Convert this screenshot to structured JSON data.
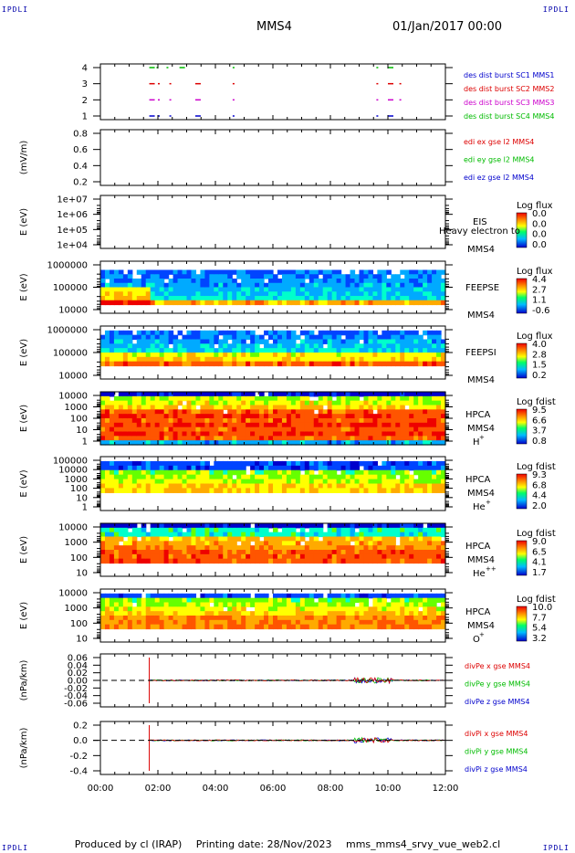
{
  "header": {
    "corner_label": "IPDLI",
    "spacecraft": "MMS4",
    "date": "01/Jan/2017 00:00"
  },
  "footer": {
    "produced_by": "Produced by cl (IRAP)",
    "printing_date": "Printing date: 28/Nov/2023",
    "file": "mms_mms4_srvy_vue_web2.cl"
  },
  "colors": {
    "blue": "#0000cc",
    "red": "#dd0000",
    "magenta": "#cc00cc",
    "green": "#00bb00"
  },
  "chart_data": {
    "type": "multi-panel",
    "x_range": [
      "00:00",
      "12:00"
    ],
    "x_ticks": [
      "00:00",
      "02:00",
      "04:00",
      "06:00",
      "08:00",
      "10:00",
      "12:00"
    ],
    "panels": [
      {
        "id": "burst",
        "type": "scatter",
        "ylabel": "",
        "yticks": [
          "4",
          "3",
          "2",
          "1"
        ],
        "legend": [
          {
            "text": "des dist burst SC1 MMS1",
            "color": "#0000cc"
          },
          {
            "text": "des dist burst SC2 MMS2",
            "color": "#dd0000"
          },
          {
            "text": "des dist burst SC3 MMS3",
            "color": "#cc00cc"
          },
          {
            "text": "des dist burst SC4 MMS4",
            "color": "#00bb00"
          }
        ],
        "series": [
          {
            "level": 4,
            "color": "#00bb00",
            "x_hours": [
              1.7,
              1.95,
              2.3,
              2.75,
              4.6,
              9.6,
              10.0
            ]
          },
          {
            "level": 3,
            "color": "#dd0000",
            "x_hours": [
              1.7,
              2.0,
              2.4,
              3.3,
              4.6,
              9.6,
              10.0,
              10.4
            ]
          },
          {
            "level": 2,
            "color": "#cc00cc",
            "x_hours": [
              1.7,
              2.0,
              2.4,
              3.3,
              4.6,
              9.6,
              10.0,
              10.4
            ]
          },
          {
            "level": 1,
            "color": "#0000cc",
            "x_hours": [
              1.7,
              2.0,
              2.4,
              3.3,
              4.6,
              9.6,
              10.0
            ]
          }
        ]
      },
      {
        "id": "edi",
        "type": "line",
        "ylabel": "(mV/m)",
        "yticks": [
          "0.8",
          "0.6",
          "0.4",
          "0.2"
        ],
        "legend": [
          {
            "text": "edi ex gse l2 MMS4",
            "color": "#dd0000"
          },
          {
            "text": "edi ey gse l2 MMS4",
            "color": "#00bb00"
          },
          {
            "text": "edi ez gse l2 MMS4",
            "color": "#0000cc"
          }
        ]
      },
      {
        "id": "eis",
        "type": "heatmap",
        "ylabel": "E (eV)",
        "yticks": [
          "1e+07",
          "1e+06",
          "1e+05",
          "1e+04"
        ],
        "labels": [
          "EIS",
          "MMS4"
        ],
        "overlay_text": "Heavy electron to",
        "cb_title": "Log flux",
        "cb_ticks": [
          "0.0",
          "0.0",
          "0.0",
          "0.0"
        ]
      },
      {
        "id": "feepse",
        "type": "heatmap",
        "ylabel": "E (eV)",
        "yticks": [
          "1000000",
          "100000",
          "10000"
        ],
        "labels": [
          "FEEPSE",
          "MMS4"
        ],
        "cb_title": "Log flux",
        "cb_ticks": [
          "4.4",
          "2.7",
          "1.1",
          "-0.6"
        ]
      },
      {
        "id": "feepsi",
        "type": "heatmap",
        "ylabel": "E (eV)",
        "yticks": [
          "1000000",
          "100000",
          "10000"
        ],
        "labels": [
          "FEEPSI",
          "MMS4"
        ],
        "cb_title": "Log flux",
        "cb_ticks": [
          "4.0",
          "2.8",
          "1.5",
          "0.2"
        ]
      },
      {
        "id": "hpca_h",
        "type": "heatmap",
        "ylabel": "E (eV)",
        "yticks": [
          "10000",
          "1000",
          "100",
          "10",
          "1"
        ],
        "labels": [
          "HPCA",
          "MMS4"
        ],
        "species": "H",
        "species_sup": "+",
        "cb_title": "Log fdist",
        "cb_ticks": [
          "9.5",
          "6.6",
          "3.7",
          "0.8"
        ]
      },
      {
        "id": "hpca_he",
        "type": "heatmap",
        "ylabel": "E (eV)",
        "yticks": [
          "100000",
          "10000",
          "1000",
          "100",
          "10",
          "1"
        ],
        "labels": [
          "HPCA",
          "MMS4"
        ],
        "species": "He",
        "species_sup": "+",
        "cb_title": "Log fdist",
        "cb_ticks": [
          "9.3",
          "6.8",
          "4.4",
          "2.0"
        ]
      },
      {
        "id": "hpca_hepp",
        "type": "heatmap",
        "ylabel": "E (eV)",
        "yticks": [
          "10000",
          "1000",
          "100",
          "10"
        ],
        "labels": [
          "HPCA",
          "MMS4"
        ],
        "species": "He",
        "species_sup": "++",
        "cb_title": "Log fdist",
        "cb_ticks": [
          "9.0",
          "6.5",
          "4.1",
          "1.7"
        ]
      },
      {
        "id": "hpca_o",
        "type": "heatmap",
        "ylabel": "E (eV)",
        "yticks": [
          "10000",
          "1000",
          "100",
          "10"
        ],
        "labels": [
          "HPCA",
          "MMS4"
        ],
        "species": "O",
        "species_sup": "+",
        "cb_title": "Log fdist",
        "cb_ticks": [
          "10.0",
          "7.7",
          "5.4",
          "3.2"
        ]
      },
      {
        "id": "divpe",
        "type": "line",
        "ylabel": "(nPa/km)",
        "yticks": [
          "0.06",
          "0.04",
          "0.02",
          "0.00",
          "-0.02",
          "-0.04",
          "-0.06"
        ],
        "legend": [
          {
            "text": "divPe x gse MMS4",
            "color": "#dd0000"
          },
          {
            "text": "divPe y gse MMS4",
            "color": "#00bb00"
          },
          {
            "text": "divPe z gse MMS4",
            "color": "#0000cc"
          }
        ]
      },
      {
        "id": "divpi",
        "type": "line",
        "ylabel": "(nPa/km)",
        "yticks": [
          "0.2",
          "0.0",
          "-0.2",
          "-0.4"
        ],
        "legend": [
          {
            "text": "divPi x gse MMS4",
            "color": "#dd0000"
          },
          {
            "text": "divPi y gse MMS4",
            "color": "#00bb00"
          },
          {
            "text": "divPi z gse MMS4",
            "color": "#0000cc"
          }
        ]
      }
    ]
  }
}
